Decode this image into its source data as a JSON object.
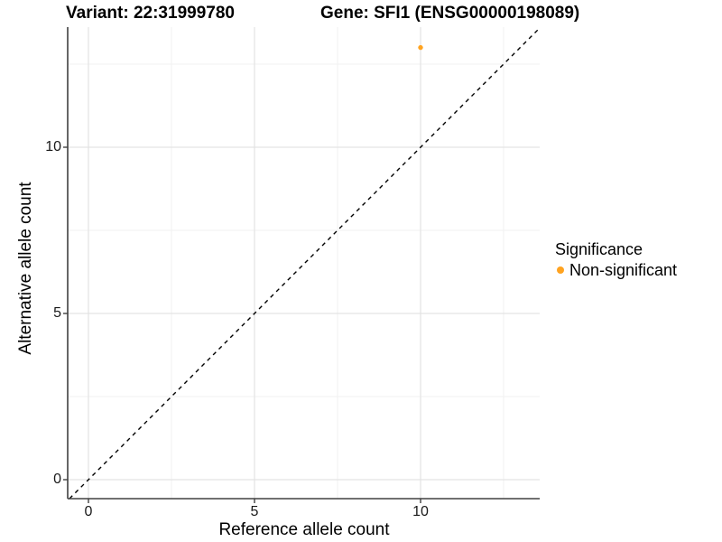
{
  "titles": {
    "variant": "Variant: 22:31999780",
    "gene": "Gene: SFI1 (ENSG00000198089)"
  },
  "chart_data": {
    "type": "scatter",
    "title_left": "Variant: 22:31999780",
    "title_right": "Gene: SFI1 (ENSG00000198089)",
    "xlabel": "Reference allele count",
    "ylabel": "Alternative allele count",
    "x_ticks": [
      0,
      5,
      10
    ],
    "y_ticks": [
      0,
      5,
      10
    ],
    "x_minor": [
      2.5,
      7.5,
      12.5
    ],
    "y_minor": [
      2.5,
      7.5,
      12.5
    ],
    "xlim": [
      -0.63,
      13.6
    ],
    "ylim": [
      -0.57,
      13.6
    ],
    "grid": "on",
    "points": [
      {
        "x": 10,
        "y": 13,
        "series": "Non-significant"
      }
    ],
    "identity_line": {
      "equation": "y = x",
      "style": "dashed",
      "color": "#000000"
    },
    "legend": {
      "title": "Significance",
      "position": "right",
      "items": [
        {
          "label": "Non-significant",
          "color": "#FFA320"
        }
      ]
    },
    "style": {
      "grid_major": "#e3e3e3",
      "grid_minor": "#f1f1f1",
      "axis_line": "#404040",
      "point_color": "#FFA320"
    }
  }
}
